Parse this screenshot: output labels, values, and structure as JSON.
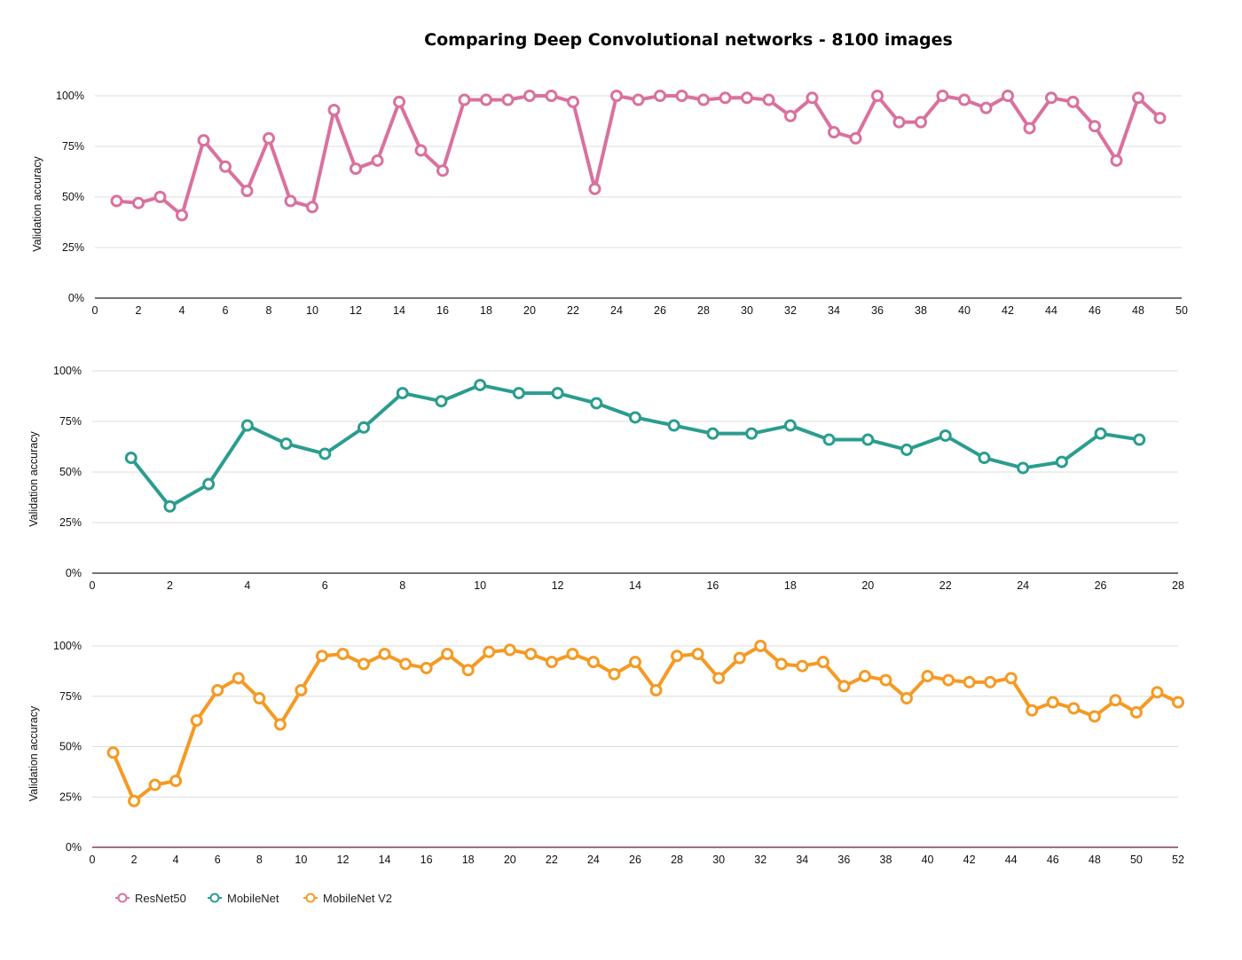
{
  "title": "Comparing Deep Convolutional networks - 8100 images",
  "legend": [
    {
      "name": "ResNet50",
      "color": "#d9719f"
    },
    {
      "name": "MobileNet",
      "color": "#2a9d8f"
    },
    {
      "name": "MobileNet V2",
      "color": "#f59a23"
    }
  ],
  "chart_data": [
    {
      "type": "line",
      "ylabel": "Validation accuracy",
      "xlim": [
        0,
        50
      ],
      "ylim": [
        0,
        100
      ],
      "xticks": [
        "0",
        "2",
        "4",
        "6",
        "8",
        "10",
        "12",
        "14",
        "16",
        "18",
        "20",
        "22",
        "24",
        "26",
        "28",
        "30",
        "32",
        "34",
        "36",
        "38",
        "40",
        "42",
        "44",
        "46",
        "48",
        "50"
      ],
      "yticks": [
        "0%",
        "25%",
        "50%",
        "75%",
        "100%"
      ],
      "grid": true,
      "series": [
        {
          "name": "ResNet50",
          "color": "#d9719f",
          "x": [
            1,
            2,
            3,
            4,
            5,
            6,
            7,
            8,
            9,
            10,
            11,
            12,
            13,
            14,
            15,
            16,
            17,
            18,
            19,
            20,
            21,
            22,
            23,
            24,
            25,
            26,
            27,
            28,
            29,
            30,
            31,
            32,
            33,
            34,
            35,
            36,
            37,
            38,
            39,
            40,
            41,
            42,
            43,
            44,
            45,
            46,
            47,
            48,
            49
          ],
          "values": [
            48,
            47,
            50,
            41,
            78,
            65,
            53,
            79,
            48,
            45,
            93,
            64,
            68,
            97,
            73,
            63,
            98,
            98,
            98,
            100,
            100,
            97,
            54,
            100,
            98,
            100,
            100,
            98,
            99,
            99,
            98,
            90,
            99,
            82,
            79,
            100,
            87,
            87,
            100,
            98,
            94,
            100,
            84,
            99,
            97,
            85,
            68,
            99,
            89
          ]
        }
      ]
    },
    {
      "type": "line",
      "ylabel": "Validation accuracy",
      "xlim": [
        0,
        28
      ],
      "ylim": [
        0,
        100
      ],
      "xticks": [
        "0",
        "2",
        "4",
        "6",
        "8",
        "10",
        "12",
        "14",
        "16",
        "18",
        "20",
        "22",
        "24",
        "26",
        "28"
      ],
      "yticks": [
        "0%",
        "25%",
        "50%",
        "75%",
        "100%"
      ],
      "grid": true,
      "series": [
        {
          "name": "MobileNet",
          "color": "#2a9d8f",
          "x": [
            1,
            2,
            3,
            4,
            5,
            6,
            7,
            8,
            9,
            10,
            11,
            12,
            13,
            14,
            15,
            16,
            17,
            18,
            19,
            20,
            21,
            22,
            23,
            24,
            25,
            26,
            27
          ],
          "values": [
            57,
            33,
            44,
            73,
            64,
            59,
            72,
            89,
            85,
            93,
            89,
            89,
            84,
            77,
            73,
            69,
            69,
            73,
            66,
            66,
            61,
            68,
            57,
            52,
            55,
            69,
            66
          ]
        }
      ]
    },
    {
      "type": "line",
      "ylabel": "Validation accuracy",
      "xlim": [
        0,
        52
      ],
      "ylim": [
        0,
        100
      ],
      "xticks": [
        "0",
        "2",
        "4",
        "6",
        "8",
        "10",
        "12",
        "14",
        "16",
        "18",
        "20",
        "22",
        "24",
        "26",
        "28",
        "30",
        "32",
        "34",
        "36",
        "38",
        "40",
        "42",
        "44",
        "46",
        "48",
        "50",
        "52"
      ],
      "yticks": [
        "0%",
        "25%",
        "50%",
        "75%",
        "100%"
      ],
      "grid": true,
      "series": [
        {
          "name": "MobileNet V2",
          "color": "#f59a23",
          "x": [
            1,
            2,
            3,
            4,
            5,
            6,
            7,
            8,
            9,
            10,
            11,
            12,
            13,
            14,
            15,
            16,
            17,
            18,
            19,
            20,
            21,
            22,
            23,
            24,
            25,
            26,
            27,
            28,
            29,
            30,
            31,
            32,
            33,
            34,
            35,
            36,
            37,
            38,
            39,
            40,
            41,
            42,
            43,
            44,
            45,
            46,
            47,
            48,
            49,
            50,
            51,
            52
          ],
          "values": [
            47,
            23,
            31,
            33,
            63,
            78,
            84,
            74,
            61,
            78,
            95,
            96,
            91,
            96,
            91,
            89,
            96,
            88,
            97,
            98,
            96,
            92,
            96,
            92,
            86,
            92,
            78,
            95,
            96,
            84,
            94,
            100,
            91,
            90,
            92,
            80,
            85,
            83,
            74,
            85,
            83,
            82,
            82,
            84,
            68,
            72,
            69,
            65,
            73,
            67,
            77,
            72
          ]
        }
      ]
    }
  ]
}
